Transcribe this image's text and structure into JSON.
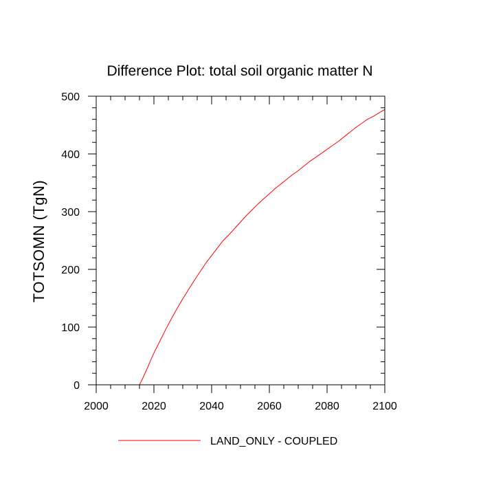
{
  "chart_data": {
    "type": "line",
    "title": "Difference Plot: total soil organic matter N",
    "xlabel": "",
    "ylabel": "TOTSOMN  (TgN)",
    "xlim": [
      2000,
      2100
    ],
    "ylim": [
      0,
      500
    ],
    "x_ticks": [
      2000,
      2020,
      2040,
      2060,
      2080,
      2100
    ],
    "y_ticks": [
      0,
      100,
      200,
      300,
      400,
      500
    ],
    "x_tick_labels": [
      "2000",
      "2020",
      "2040",
      "2060",
      "2080",
      "2100"
    ],
    "y_tick_labels": [
      "0",
      "100",
      "200",
      "300",
      "400",
      "500"
    ],
    "x_minor_step": 5,
    "y_minor_step": 20,
    "grid": false,
    "legend": {
      "position": "bottom-center"
    },
    "series": [
      {
        "name": "LAND_ONLY - COUPLED",
        "color": "#ff0000",
        "x": [
          2015,
          2016,
          2017,
          2018,
          2019,
          2020,
          2022,
          2024,
          2026,
          2028,
          2030,
          2032,
          2034,
          2036,
          2038,
          2040,
          2042,
          2044,
          2046,
          2048,
          2050,
          2052,
          2054,
          2056,
          2058,
          2060,
          2062,
          2064,
          2066,
          2068,
          2070,
          2072,
          2074,
          2076,
          2078,
          2080,
          2082,
          2084,
          2086,
          2088,
          2090,
          2092,
          2094,
          2096,
          2098,
          2100
        ],
        "y": [
          0,
          10,
          21,
          32,
          44,
          55,
          75,
          95,
          114,
          132,
          149,
          165,
          181,
          196,
          211,
          224,
          237,
          250,
          260,
          271,
          282,
          293,
          303,
          313,
          322,
          331,
          340,
          348,
          356,
          364,
          371,
          379,
          387,
          394,
          401,
          408,
          415,
          422,
          430,
          438,
          446,
          453,
          460,
          465,
          471,
          477
        ]
      }
    ]
  }
}
